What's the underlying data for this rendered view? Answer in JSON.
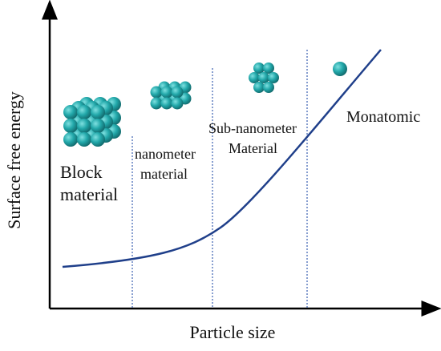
{
  "axes": {
    "x_label": "Particle size",
    "y_label": "Surface free energy"
  },
  "regions": [
    {
      "label": [
        "Block",
        "material"
      ]
    },
    {
      "label": [
        "nanometer",
        "material"
      ]
    },
    {
      "label": [
        "Sub-nanometer",
        "Material"
      ]
    },
    {
      "label": [
        "Monatomic"
      ]
    }
  ]
}
